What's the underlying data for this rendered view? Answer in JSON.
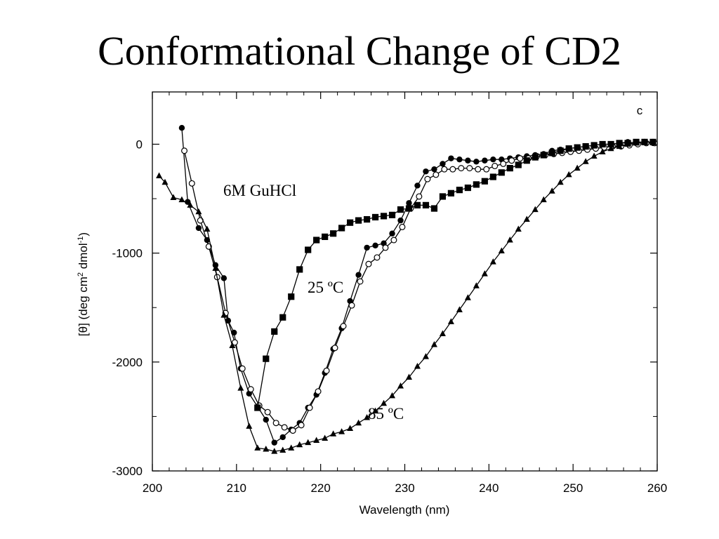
{
  "slide": {
    "title": "Conformational Change of CD2"
  },
  "chart_data": {
    "type": "line",
    "panel_label": "c",
    "xlabel": "Wavelength (nm)",
    "ylabel": "[θ] (deg cm2 dmol-1)",
    "xlim": [
      200,
      260
    ],
    "ylim": [
      -3000,
      480
    ],
    "x_ticks": [
      200,
      210,
      220,
      230,
      240,
      250,
      260
    ],
    "y_ticks": [
      0,
      -1000,
      -2000,
      -3000
    ],
    "x_tick_labels": [
      "200",
      "210",
      "220",
      "230",
      "240",
      "250",
      "260"
    ],
    "y_tick_labels": [
      "0",
      "-1000",
      "-2000",
      "-3000"
    ],
    "grid": false,
    "annotations": [
      {
        "text": "6M GuHCl",
        "x": 209.5,
        "y": -400
      },
      {
        "text": "25 ºC",
        "x": 218.3,
        "y": -1330
      },
      {
        "text": "85 ºC",
        "x": 225.5,
        "y": -2570
      }
    ],
    "series": [
      {
        "marker": "filled-circle",
        "x": [
          203.5,
          204.2,
          205.5,
          206.5,
          207.5,
          208.5,
          209.0,
          209.7,
          210.5,
          211.5,
          212.5,
          213.5,
          214.5,
          215.5,
          216.5,
          217.5,
          218.5,
          219.5,
          220.5,
          221.5,
          222.5,
          223.5,
          224.5,
          225.5,
          226.5,
          227.5,
          228.5,
          229.5,
          230.5,
          231.5,
          232.5,
          233.5,
          234.5,
          235.5,
          236.5,
          237.5,
          238.5,
          239.5,
          240.5,
          241.5,
          242.5,
          243.5,
          244.5,
          245.5,
          246.5,
          247.5,
          248.5,
          249.5,
          250.5,
          251.5,
          252.5,
          253.5,
          254.5,
          255.5,
          256.5,
          257.5,
          258.5,
          259.5
        ],
        "y": [
          150,
          -530,
          -770,
          -880,
          -1110,
          -1230,
          -1620,
          -1730,
          -2060,
          -2290,
          -2410,
          -2530,
          -2740,
          -2690,
          -2620,
          -2560,
          -2420,
          -2300,
          -2100,
          -1880,
          -1690,
          -1440,
          -1200,
          -950,
          -930,
          -910,
          -820,
          -700,
          -540,
          -380,
          -250,
          -230,
          -180,
          -130,
          -140,
          -150,
          -160,
          -150,
          -140,
          -140,
          -130,
          -120,
          -110,
          -100,
          -90,
          -60,
          -50,
          -40,
          -30,
          -20,
          -10,
          0,
          0,
          10,
          20,
          10,
          20,
          10
        ]
      },
      {
        "marker": "open-circle",
        "x": [
          203.8,
          204.7,
          205.7,
          206.7,
          207.7,
          208.7,
          209.8,
          210.7,
          211.7,
          212.7,
          213.7,
          214.7,
          215.7,
          216.7,
          217.7,
          218.7,
          219.7,
          220.7,
          221.7,
          222.7,
          223.7,
          224.7,
          225.7,
          226.7,
          227.7,
          228.7,
          229.7,
          230.7,
          231.7,
          232.7,
          233.7,
          234.7,
          235.7,
          236.7,
          237.7,
          238.7,
          239.7,
          240.7,
          241.7,
          242.7,
          243.7,
          244.7,
          245.7,
          246.7,
          247.7,
          248.7,
          249.7,
          250.7,
          251.7,
          252.7,
          253.7,
          254.7,
          255.7,
          256.7,
          257.7,
          258.7,
          259.7
        ],
        "y": [
          -60,
          -360,
          -700,
          -940,
          -1220,
          -1550,
          -1820,
          -2060,
          -2250,
          -2400,
          -2460,
          -2560,
          -2600,
          -2630,
          -2580,
          -2420,
          -2270,
          -2080,
          -1870,
          -1670,
          -1480,
          -1260,
          -1100,
          -1040,
          -950,
          -880,
          -760,
          -590,
          -480,
          -320,
          -280,
          -230,
          -230,
          -220,
          -220,
          -230,
          -230,
          -200,
          -180,
          -150,
          -130,
          -130,
          -110,
          -100,
          -90,
          -80,
          -70,
          -60,
          -50,
          -40,
          -30,
          -20,
          -20,
          -10,
          0,
          10,
          10
        ]
      },
      {
        "marker": "filled-square",
        "x": [
          212.5,
          213.5,
          214.5,
          215.5,
          216.5,
          217.5,
          218.5,
          219.5,
          220.5,
          221.5,
          222.5,
          223.5,
          224.5,
          225.5,
          226.5,
          227.5,
          228.5,
          229.5,
          230.5,
          231.5,
          232.5,
          233.5,
          234.5,
          235.5,
          236.5,
          237.5,
          238.5,
          239.5,
          240.5,
          241.5,
          242.5,
          243.5,
          244.5,
          245.5,
          246.5,
          247.5,
          248.5,
          249.5,
          250.5,
          251.5,
          252.5,
          253.5,
          254.5,
          255.5,
          256.5,
          257.5,
          258.5,
          259.5
        ],
        "y": [
          -2420,
          -1970,
          -1720,
          -1590,
          -1400,
          -1150,
          -970,
          -880,
          -850,
          -820,
          -770,
          -720,
          -700,
          -690,
          -670,
          -660,
          -650,
          -600,
          -590,
          -560,
          -560,
          -590,
          -480,
          -450,
          -420,
          -400,
          -370,
          -340,
          -300,
          -260,
          -220,
          -190,
          -150,
          -120,
          -100,
          -80,
          -60,
          -40,
          -30,
          -20,
          -10,
          0,
          0,
          10,
          10,
          20,
          20,
          20
        ]
      },
      {
        "marker": "filled-triangle",
        "x": [
          200.8,
          201.5,
          202.5,
          203.5,
          204.5,
          205.5,
          206.5,
          207.5,
          208.5,
          209.5,
          210.5,
          211.5,
          212.5,
          213.5,
          214.5,
          215.5,
          216.5,
          217.5,
          218.5,
          219.5,
          220.5,
          221.5,
          222.5,
          223.5,
          224.5,
          225.5,
          226.5,
          227.5,
          228.5,
          229.5,
          230.5,
          231.5,
          232.5,
          233.5,
          234.5,
          235.5,
          236.5,
          237.5,
          238.5,
          239.5,
          240.5,
          241.5,
          242.5,
          243.5,
          244.5,
          245.5,
          246.5,
          247.5,
          248.5,
          249.5,
          250.5,
          251.5,
          252.5,
          253.5,
          254.5,
          255.5,
          256.5,
          257.5,
          258.5,
          259.5
        ],
        "y": [
          -290,
          -350,
          -490,
          -510,
          -560,
          -620,
          -780,
          -1140,
          -1570,
          -1850,
          -2240,
          -2590,
          -2790,
          -2800,
          -2820,
          -2810,
          -2790,
          -2760,
          -2740,
          -2720,
          -2700,
          -2660,
          -2640,
          -2610,
          -2560,
          -2510,
          -2450,
          -2380,
          -2310,
          -2220,
          -2140,
          -2040,
          -1950,
          -1840,
          -1740,
          -1630,
          -1520,
          -1410,
          -1300,
          -1190,
          -1080,
          -980,
          -880,
          -780,
          -690,
          -600,
          -510,
          -430,
          -350,
          -280,
          -220,
          -160,
          -110,
          -70,
          -40,
          -20,
          0,
          10,
          20,
          20
        ]
      }
    ]
  }
}
